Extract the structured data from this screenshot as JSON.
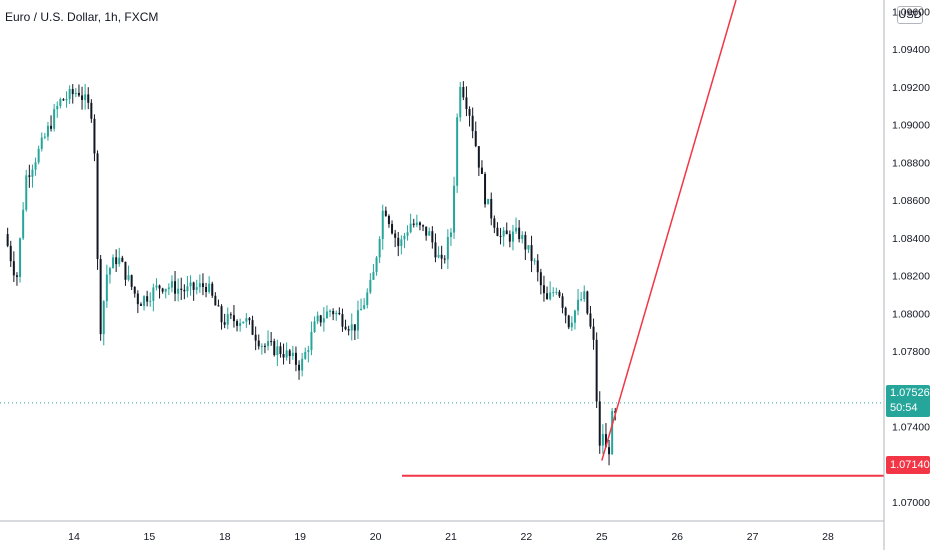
{
  "header": {
    "symbol_title": "Euro / U.S. Dollar, 1h, FXCM",
    "currency_label": "USD"
  },
  "colors": {
    "bull": "#26a69a",
    "bear": "#131722",
    "level": "#f23645",
    "trend": "#f23645",
    "grid": "#e0e3eb"
  },
  "current_price": {
    "price_label": "1.07526",
    "countdown": "50:54"
  },
  "support_level": {
    "price": 1.0714,
    "price_label": "1.07140"
  },
  "chart_data": {
    "type": "candlestick",
    "title": "Euro / U.S. Dollar, 1h, FXCM",
    "xlabel": "",
    "ylabel": "",
    "ylim": [
      1.069,
      1.0966
    ],
    "y_ticks": [
      "1.07000",
      "1.07200",
      "1.07400",
      "1.07600",
      "1.07800",
      "1.08000",
      "1.08200",
      "1.08400",
      "1.08600",
      "1.08800",
      "1.09000",
      "1.09200",
      "1.09400",
      "1.09600"
    ],
    "x_ticks": [
      "14",
      "15",
      "18",
      "19",
      "20",
      "21",
      "22",
      "25",
      "26",
      "27",
      "28"
    ],
    "x_tick_index": [
      0,
      1,
      2,
      3,
      4,
      5,
      6,
      7,
      8,
      9,
      10
    ],
    "current_price": 1.07526,
    "horizontal_line": 1.0714,
    "trendline": {
      "from": {
        "day_index": 7.0,
        "price": 1.0722
      },
      "to": {
        "day_index": 8.78,
        "price": 1.0966
      }
    },
    "series": [
      {
        "name": "EURUSD",
        "anchors": [
          {
            "x": -0.88,
            "price": 1.0842
          },
          {
            "x": -0.72,
            "price": 1.0818
          },
          {
            "x": -0.6,
            "price": 1.0872
          },
          {
            "x": -0.4,
            "price": 1.0888
          },
          {
            "x": -0.15,
            "price": 1.0912
          },
          {
            "x": 0.1,
            "price": 1.0918
          },
          {
            "x": 0.3,
            "price": 1.0905
          },
          {
            "x": 0.38,
            "price": 1.0788
          },
          {
            "x": 0.48,
            "price": 1.0822
          },
          {
            "x": 0.62,
            "price": 1.083
          },
          {
            "x": 0.9,
            "price": 1.0806
          },
          {
            "x": 1.2,
            "price": 1.0815
          },
          {
            "x": 1.55,
            "price": 1.0812
          },
          {
            "x": 1.8,
            "price": 1.0815
          },
          {
            "x": 2.0,
            "price": 1.0796
          },
          {
            "x": 2.3,
            "price": 1.0797
          },
          {
            "x": 2.55,
            "price": 1.0783
          },
          {
            "x": 2.8,
            "price": 1.078
          },
          {
            "x": 3.05,
            "price": 1.0772
          },
          {
            "x": 3.25,
            "price": 1.0795
          },
          {
            "x": 3.45,
            "price": 1.0802
          },
          {
            "x": 3.75,
            "price": 1.0792
          },
          {
            "x": 4.0,
            "price": 1.0817
          },
          {
            "x": 4.15,
            "price": 1.0858
          },
          {
            "x": 4.35,
            "price": 1.0835
          },
          {
            "x": 4.5,
            "price": 1.0848
          },
          {
            "x": 4.75,
            "price": 1.0842
          },
          {
            "x": 4.92,
            "price": 1.0825
          },
          {
            "x": 5.05,
            "price": 1.0845
          },
          {
            "x": 5.15,
            "price": 1.0925
          },
          {
            "x": 5.3,
            "price": 1.0905
          },
          {
            "x": 5.5,
            "price": 1.086
          },
          {
            "x": 5.7,
            "price": 1.084
          },
          {
            "x": 5.95,
            "price": 1.0842
          },
          {
            "x": 6.15,
            "price": 1.0826
          },
          {
            "x": 6.3,
            "price": 1.0805
          },
          {
            "x": 6.45,
            "price": 1.0815
          },
          {
            "x": 6.6,
            "price": 1.0795
          },
          {
            "x": 6.8,
            "price": 1.081
          },
          {
            "x": 6.95,
            "price": 1.078
          },
          {
            "x": 7.0,
            "price": 1.0724
          },
          {
            "x": 7.05,
            "price": 1.0738
          },
          {
            "x": 7.12,
            "price": 1.0722
          },
          {
            "x": 7.18,
            "price": 1.0745
          }
        ]
      }
    ]
  }
}
